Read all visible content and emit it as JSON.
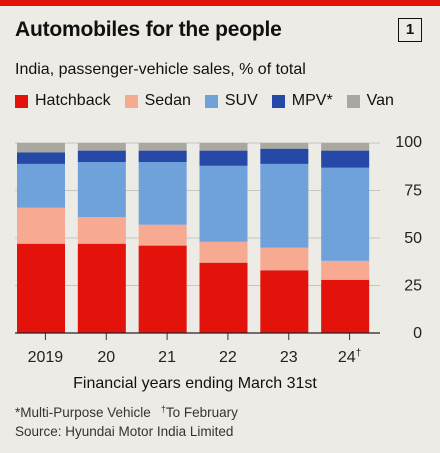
{
  "header": {
    "title": "Automobiles for the people",
    "badge": "1",
    "subtitle": "India, passenger-vehicle sales, % of total"
  },
  "footnotes": {
    "mpv_note": "*Multi-Purpose Vehicle",
    "feb_mark": "†",
    "feb_note": "To February",
    "source": "Source: Hyundai Motor India Limited"
  },
  "chart_data": {
    "type": "bar",
    "stacked": true,
    "categories": [
      "2019",
      "20",
      "21",
      "22",
      "23",
      "24"
    ],
    "category_marks": [
      "",
      "",
      "",
      "",
      "",
      "†"
    ],
    "series": [
      {
        "name": "Hatchback",
        "color": "#e3120b",
        "values": [
          47,
          47,
          46,
          37,
          33,
          28
        ]
      },
      {
        "name": "Sedan",
        "color": "#f7a992",
        "values": [
          19,
          14,
          11,
          11,
          12,
          10
        ]
      },
      {
        "name": "SUV",
        "color": "#6fa1db",
        "values": [
          23,
          29,
          33,
          40,
          44,
          49
        ]
      },
      {
        "name": "MPV*",
        "color": "#2648a7",
        "values": [
          6,
          6,
          6,
          8,
          8,
          9
        ]
      },
      {
        "name": "Van",
        "color": "#a8a8a1",
        "values": [
          5,
          4,
          4,
          4,
          3,
          4
        ]
      }
    ],
    "ylim": [
      0,
      100
    ],
    "yticks": [
      0,
      25,
      50,
      75,
      100
    ],
    "xlabel": "Financial years ending March 31st",
    "ylabel": "",
    "grid": true,
    "legend_position": "top"
  }
}
